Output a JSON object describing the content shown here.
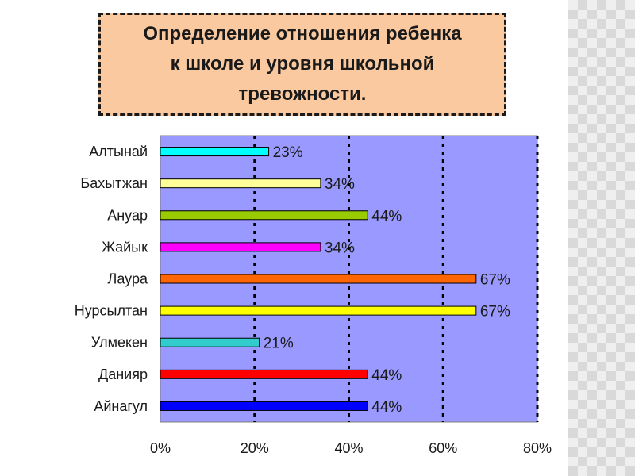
{
  "slide": {
    "title": "Определение  отношения  ребенка\nк школе и уровня  школьной\nтревожности."
  },
  "chart_data": {
    "type": "bar",
    "orientation": "horizontal",
    "title": "Определение  отношения  ребенка к школе и уровня  школьной тревожности.",
    "categories": [
      "Алтынай",
      "Бахытжан",
      "Ануар",
      "Жайык",
      "Лаура",
      "Нурсылтан",
      "Улмекен",
      "Данияр",
      "Айнагул"
    ],
    "values": [
      23,
      34,
      44,
      34,
      67,
      67,
      21,
      44,
      44
    ],
    "value_labels": [
      "23%",
      "34%",
      "44%",
      "34%",
      "67%",
      "67%",
      "21%",
      "44%",
      "44%"
    ],
    "bar_colors": [
      "#00ffff",
      "#ffff99",
      "#99cc00",
      "#ff00ff",
      "#ff6600",
      "#ffff00",
      "#33cccc",
      "#ff0000",
      "#0000ff"
    ],
    "xlim": [
      0,
      80
    ],
    "xticks": [
      0,
      20,
      40,
      60,
      80
    ],
    "xtick_labels": [
      "0%",
      "20%",
      "40%",
      "60%",
      "80%"
    ],
    "xlabel": "",
    "ylabel": "",
    "grid": "vertical dashed",
    "plot_background": "#9999ff",
    "legend": "none"
  }
}
